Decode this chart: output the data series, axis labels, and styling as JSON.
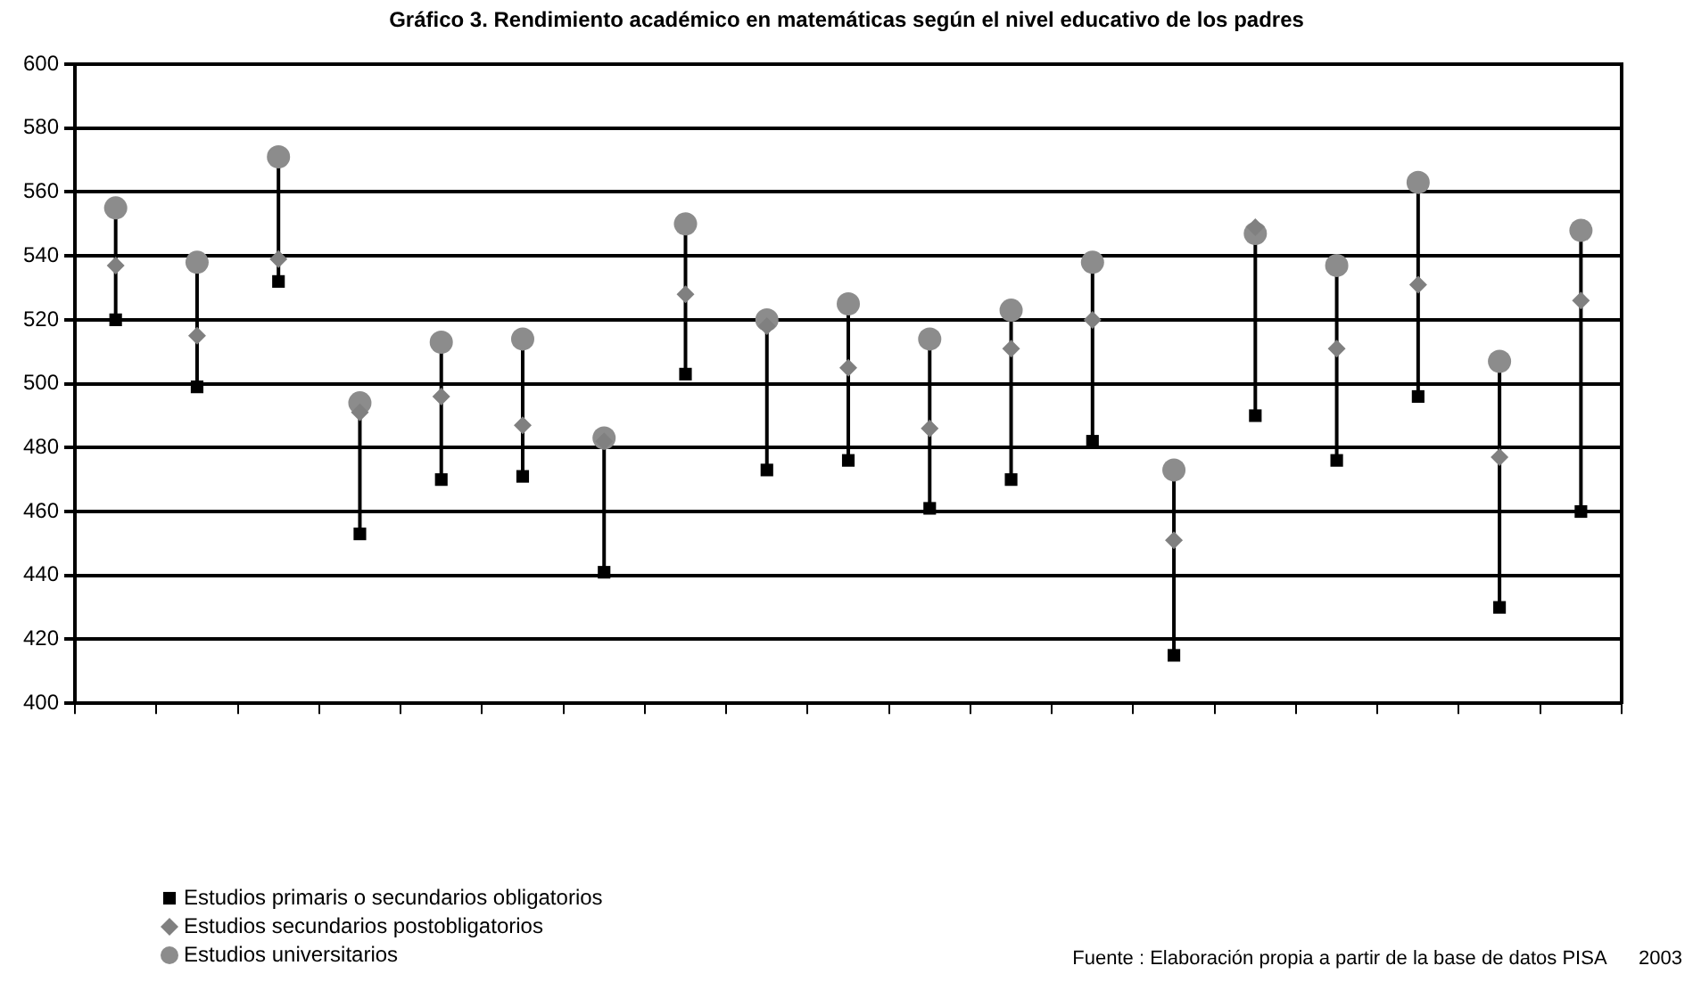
{
  "chart_data": {
    "type": "scatter",
    "title": "Gráfico  3. Rendimiento académico en matemáticas según el nivel educativo de los padres",
    "categories": [
      null,
      null,
      null,
      null,
      null,
      null,
      null,
      null,
      null,
      null,
      null,
      null,
      null,
      null,
      null,
      null,
      null,
      null,
      null
    ],
    "series": [
      {
        "name": "Estudios primaris o secundarios obligatorios",
        "color": "#000000",
        "marker": "square",
        "values": [
          520,
          499,
          532,
          453,
          470,
          471,
          441,
          503,
          473,
          476,
          461,
          470,
          482,
          415,
          490,
          476,
          496,
          430,
          460
        ]
      },
      {
        "name": "Estudios secundarios postobligatorios",
        "color": "#808080",
        "marker": "diamond",
        "values": [
          537,
          515,
          539,
          491,
          496,
          487,
          482,
          528,
          518,
          505,
          486,
          511,
          520,
          451,
          549,
          511,
          531,
          477,
          526
        ]
      },
      {
        "name": "Estudios universitarios",
        "color": "#8c8c8c",
        "marker": "circle",
        "values": [
          555,
          538,
          571,
          494,
          513,
          514,
          483,
          550,
          520,
          525,
          514,
          523,
          538,
          473,
          547,
          537,
          563,
          507,
          548
        ]
      }
    ],
    "ylim": [
      400,
      600
    ],
    "yticks": [
      400,
      420,
      440,
      460,
      480,
      500,
      520,
      540,
      560,
      580,
      600
    ],
    "grid": "y",
    "legend": "bottom left",
    "annotations": [
      "Fuente : Elaboración propia a partir de la base de datos PISA      2003"
    ]
  }
}
